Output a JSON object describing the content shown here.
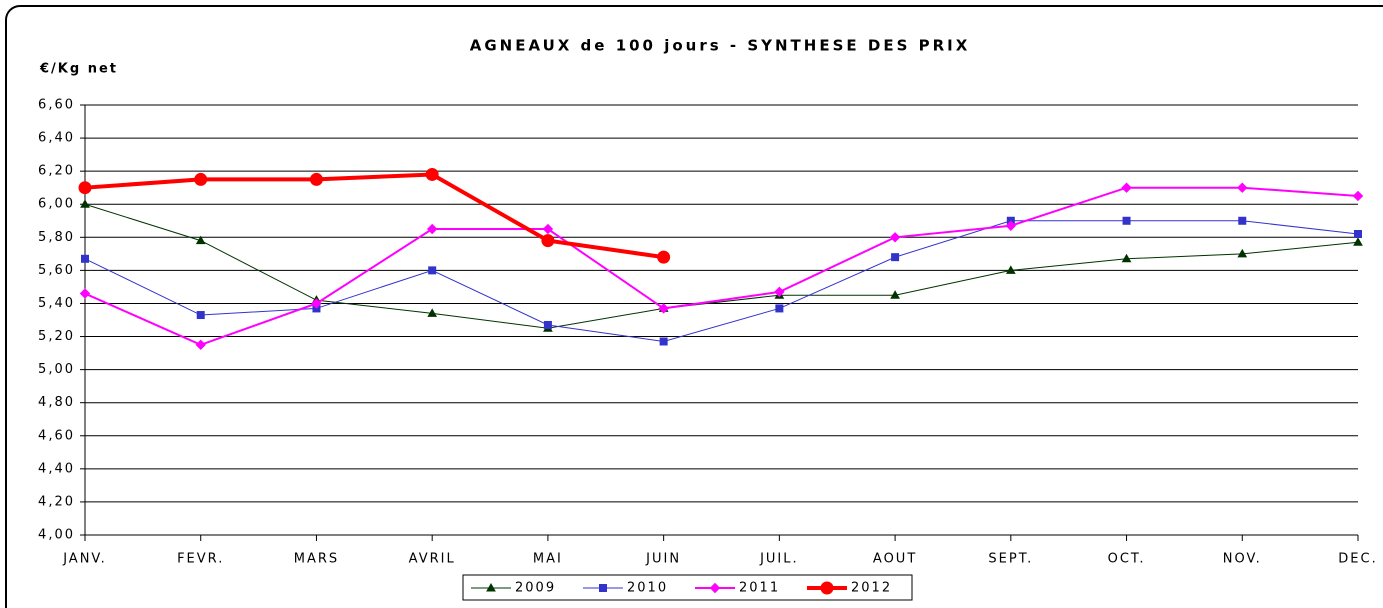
{
  "chart_data": {
    "type": "line",
    "title": "AGNEAUX de 100 jours - SYNTHESE DES PRIX",
    "y_label": "€/Kg net",
    "categories": [
      "JANV.",
      "FEVR.",
      "MARS",
      "AVRIL",
      "MAI",
      "JUIN",
      "JUIL.",
      "AOUT",
      "SEPT.",
      "OCT.",
      "NOV.",
      "DEC."
    ],
    "series": [
      {
        "name": "2009",
        "color": "#003300",
        "marker": "triangle",
        "width": 1,
        "values": [
          6.0,
          5.78,
          5.42,
          5.34,
          5.25,
          5.37,
          5.45,
          5.45,
          5.6,
          5.67,
          5.7,
          5.77
        ]
      },
      {
        "name": "2010",
        "color": "#3333cc",
        "marker": "square",
        "width": 1,
        "values": [
          5.67,
          5.33,
          5.37,
          5.6,
          5.27,
          5.17,
          5.37,
          5.68,
          5.9,
          5.9,
          5.9,
          5.82
        ]
      },
      {
        "name": "2011",
        "color": "#ff00ff",
        "marker": "diamond",
        "width": 2,
        "values": [
          5.46,
          5.15,
          5.4,
          5.85,
          5.85,
          5.37,
          5.47,
          5.8,
          5.87,
          6.1,
          6.1,
          6.05
        ]
      },
      {
        "name": "2012",
        "color": "#ff0000",
        "marker": "circle",
        "width": 4,
        "values": [
          6.1,
          6.15,
          6.15,
          6.18,
          5.78,
          5.68,
          null,
          null,
          null,
          null,
          null,
          null
        ]
      }
    ],
    "ylim": [
      4.0,
      6.6
    ],
    "yticks": [
      {
        "value": 4.0,
        "label": "4,00"
      },
      {
        "value": 4.2,
        "label": "4,20"
      },
      {
        "value": 4.4,
        "label": "4,40"
      },
      {
        "value": 4.6,
        "label": "4,60"
      },
      {
        "value": 4.8,
        "label": "4,80"
      },
      {
        "value": 5.0,
        "label": "5,00"
      },
      {
        "value": 5.2,
        "label": "5,20"
      },
      {
        "value": 5.4,
        "label": "5,40"
      },
      {
        "value": 5.6,
        "label": "5,60"
      },
      {
        "value": 5.8,
        "label": "5,80"
      },
      {
        "value": 6.0,
        "label": "6,00"
      },
      {
        "value": 6.2,
        "label": "6,20"
      },
      {
        "value": 6.4,
        "label": "6,40"
      },
      {
        "value": 6.6,
        "label": "6,60"
      }
    ],
    "grid": true,
    "legend": "bottom"
  }
}
